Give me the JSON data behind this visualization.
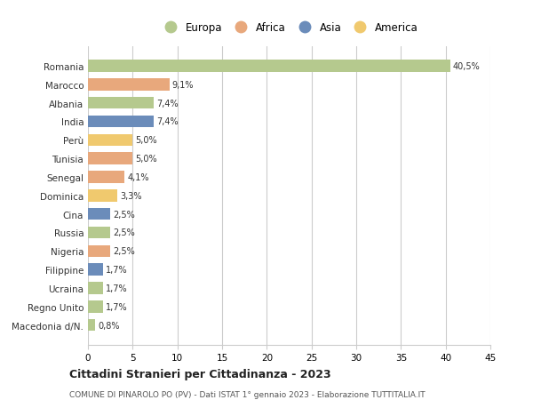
{
  "countries": [
    "Romania",
    "Marocco",
    "Albania",
    "India",
    "Perù",
    "Tunisia",
    "Senegal",
    "Dominica",
    "Cina",
    "Russia",
    "Nigeria",
    "Filippine",
    "Ucraina",
    "Regno Unito",
    "Macedonia d/N."
  ],
  "values": [
    40.5,
    9.1,
    7.4,
    7.4,
    5.0,
    5.0,
    4.1,
    3.3,
    2.5,
    2.5,
    2.5,
    1.7,
    1.7,
    1.7,
    0.8
  ],
  "labels": [
    "40,5%",
    "9,1%",
    "7,4%",
    "7,4%",
    "5,0%",
    "5,0%",
    "4,1%",
    "3,3%",
    "2,5%",
    "2,5%",
    "2,5%",
    "1,7%",
    "1,7%",
    "1,7%",
    "0,8%"
  ],
  "colors": [
    "#b5c98e",
    "#e8a87c",
    "#b5c98e",
    "#6b8cba",
    "#f0c96e",
    "#e8a87c",
    "#e8a87c",
    "#f0c96e",
    "#6b8cba",
    "#b5c98e",
    "#e8a87c",
    "#6b8cba",
    "#b5c98e",
    "#b5c98e",
    "#b5c98e"
  ],
  "legend_labels": [
    "Europa",
    "Africa",
    "Asia",
    "America"
  ],
  "legend_colors": [
    "#b5c98e",
    "#e8a87c",
    "#6b8cba",
    "#f0c96e"
  ],
  "xlim": [
    0,
    45
  ],
  "xticks": [
    0,
    5,
    10,
    15,
    20,
    25,
    30,
    35,
    40,
    45
  ],
  "title": "Cittadini Stranieri per Cittadinanza - 2023",
  "subtitle": "COMUNE DI PINAROLO PO (PV) - Dati ISTAT 1° gennaio 2023 - Elaborazione TUTTITALIA.IT",
  "background_color": "#ffffff",
  "grid_color": "#cccccc",
  "bar_height": 0.65
}
